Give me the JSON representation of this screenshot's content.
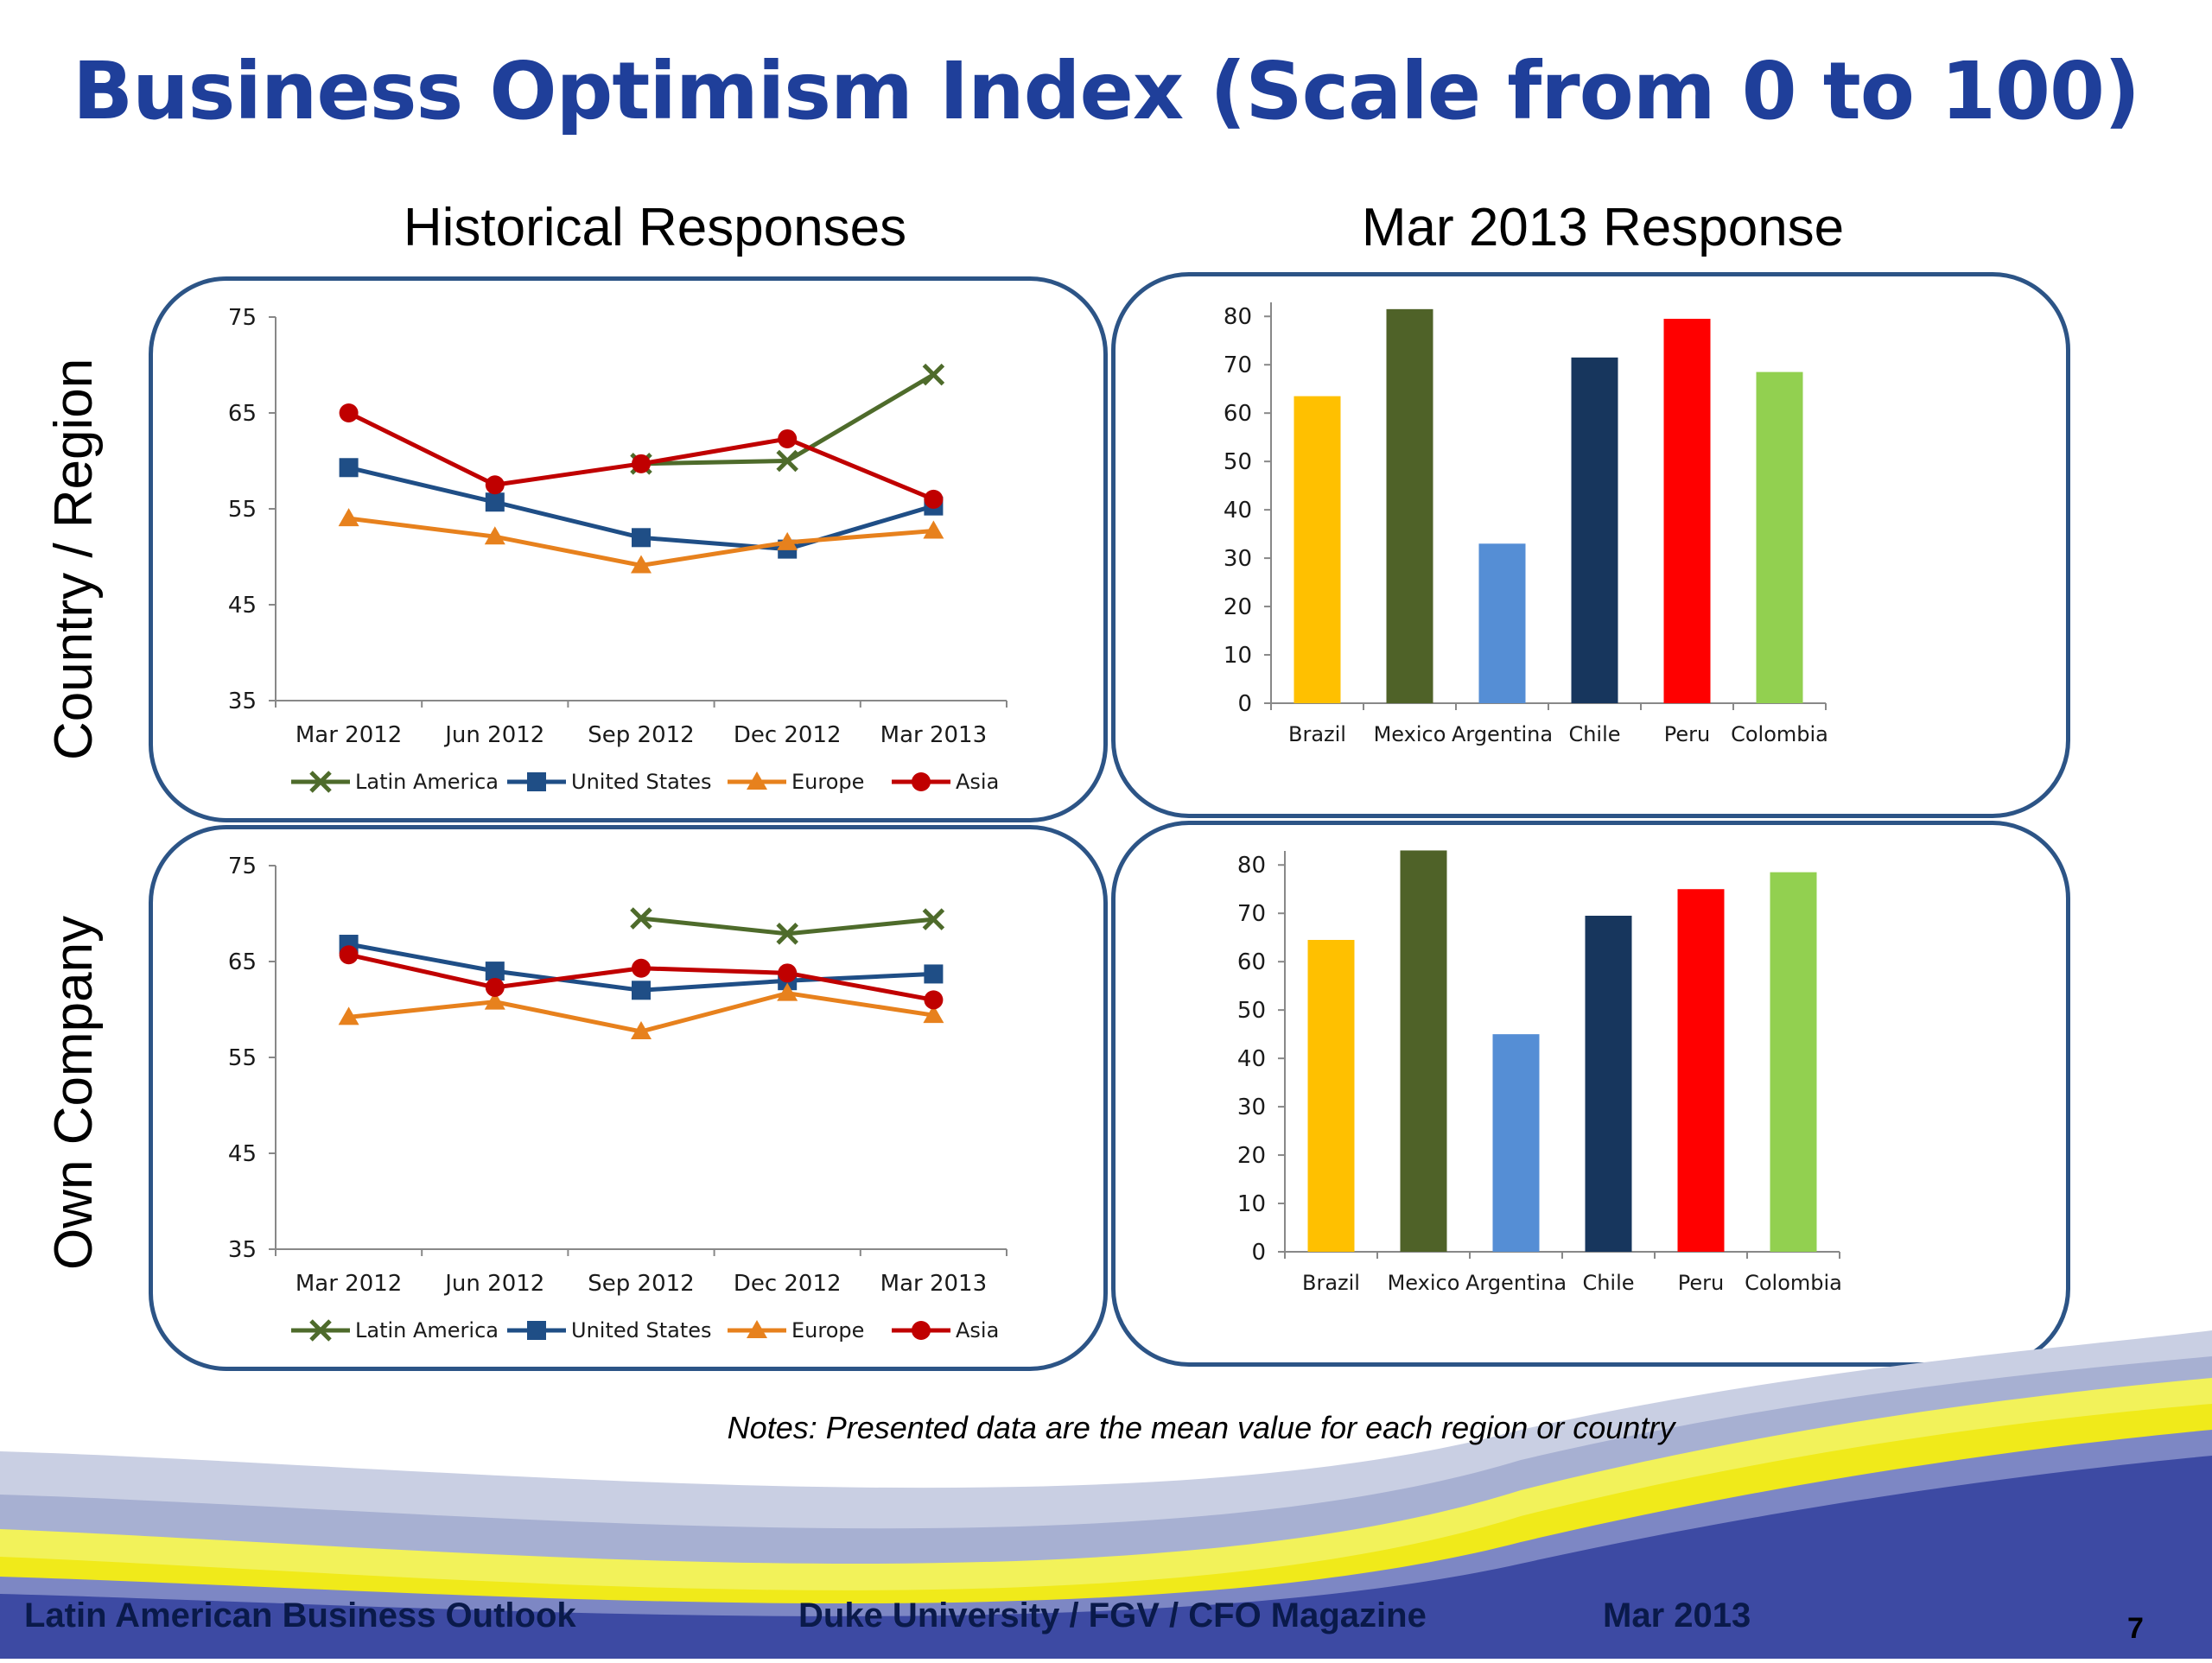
{
  "page": {
    "title": "Business Optimism Index (Scale from 0 to 100)",
    "col_left": "Historical Responses",
    "col_right": "Mar 2013 Response",
    "row_top": "Country / Region",
    "row_bottom": "Own Company",
    "note": "Notes:  Presented data are the mean value for each region or country",
    "footer_left": "Latin American Business Outlook",
    "footer_mid": "Duke University / FGV / CFO Magazine",
    "footer_date": "Mar 2013",
    "page_number": "7"
  },
  "colors": {
    "Latin America": "#4e6b2b",
    "United States": "#1f4e86",
    "Europe": "#e7811d",
    "Asia": "#c00000",
    "Brazil": "#ffc000",
    "Mexico": "#4f6228",
    "Argentina": "#558ed5",
    "Chile": "#17365d",
    "Peru": "#ff0000",
    "Colombia": "#92d050"
  },
  "chart_data": [
    {
      "id": "hist_country",
      "type": "line",
      "categories": [
        "Mar 2012",
        "Jun 2012",
        "Sep 2012",
        "Dec 2012",
        "Mar 2013"
      ],
      "ylim": [
        35,
        75
      ],
      "yticks": [
        35,
        45,
        55,
        65,
        75
      ],
      "legend": "bottom",
      "series": [
        {
          "name": "Latin America",
          "marker": "x",
          "values": [
            null,
            null,
            59.7,
            60.0,
            69.0
          ]
        },
        {
          "name": "United States",
          "marker": "square",
          "values": [
            59.3,
            55.7,
            52.0,
            50.8,
            55.3
          ]
        },
        {
          "name": "Europe",
          "marker": "triangle",
          "values": [
            54.0,
            52.1,
            49.1,
            51.5,
            52.7
          ]
        },
        {
          "name": "Asia",
          "marker": "circle",
          "values": [
            65.0,
            57.5,
            59.7,
            62.3,
            56.0
          ]
        }
      ]
    },
    {
      "id": "mar_country",
      "type": "bar",
      "categories": [
        "Brazil",
        "Mexico",
        "Argentina",
        "Chile",
        "Peru",
        "Colombia"
      ],
      "values": [
        63.5,
        81.5,
        33.0,
        71.5,
        79.5,
        68.5
      ],
      "ylim": [
        0,
        80
      ],
      "yticks": [
        0,
        10,
        20,
        30,
        40,
        50,
        60,
        70,
        80
      ]
    },
    {
      "id": "hist_company",
      "type": "line",
      "categories": [
        "Mar 2012",
        "Jun 2012",
        "Sep 2012",
        "Dec 2012",
        "Mar 2013"
      ],
      "ylim": [
        35,
        75
      ],
      "yticks": [
        35,
        45,
        55,
        65,
        75
      ],
      "legend": "bottom",
      "series": [
        {
          "name": "Latin America",
          "marker": "x",
          "values": [
            null,
            null,
            69.5,
            67.9,
            69.4
          ]
        },
        {
          "name": "United States",
          "marker": "square",
          "values": [
            66.8,
            64.0,
            62.0,
            63.0,
            63.7
          ]
        },
        {
          "name": "Europe",
          "marker": "triangle",
          "values": [
            59.2,
            60.8,
            57.7,
            61.7,
            59.4
          ]
        },
        {
          "name": "Asia",
          "marker": "circle",
          "values": [
            65.7,
            62.3,
            64.3,
            63.8,
            61.0
          ]
        }
      ]
    },
    {
      "id": "mar_company",
      "type": "bar",
      "categories": [
        "Brazil",
        "Mexico",
        "Argentina",
        "Chile",
        "Peru",
        "Colombia"
      ],
      "values": [
        64.5,
        83.0,
        45.0,
        69.5,
        75.0,
        78.5
      ],
      "ylim": [
        0,
        80
      ],
      "yticks": [
        0,
        10,
        20,
        30,
        40,
        50,
        60,
        70,
        80
      ]
    }
  ]
}
